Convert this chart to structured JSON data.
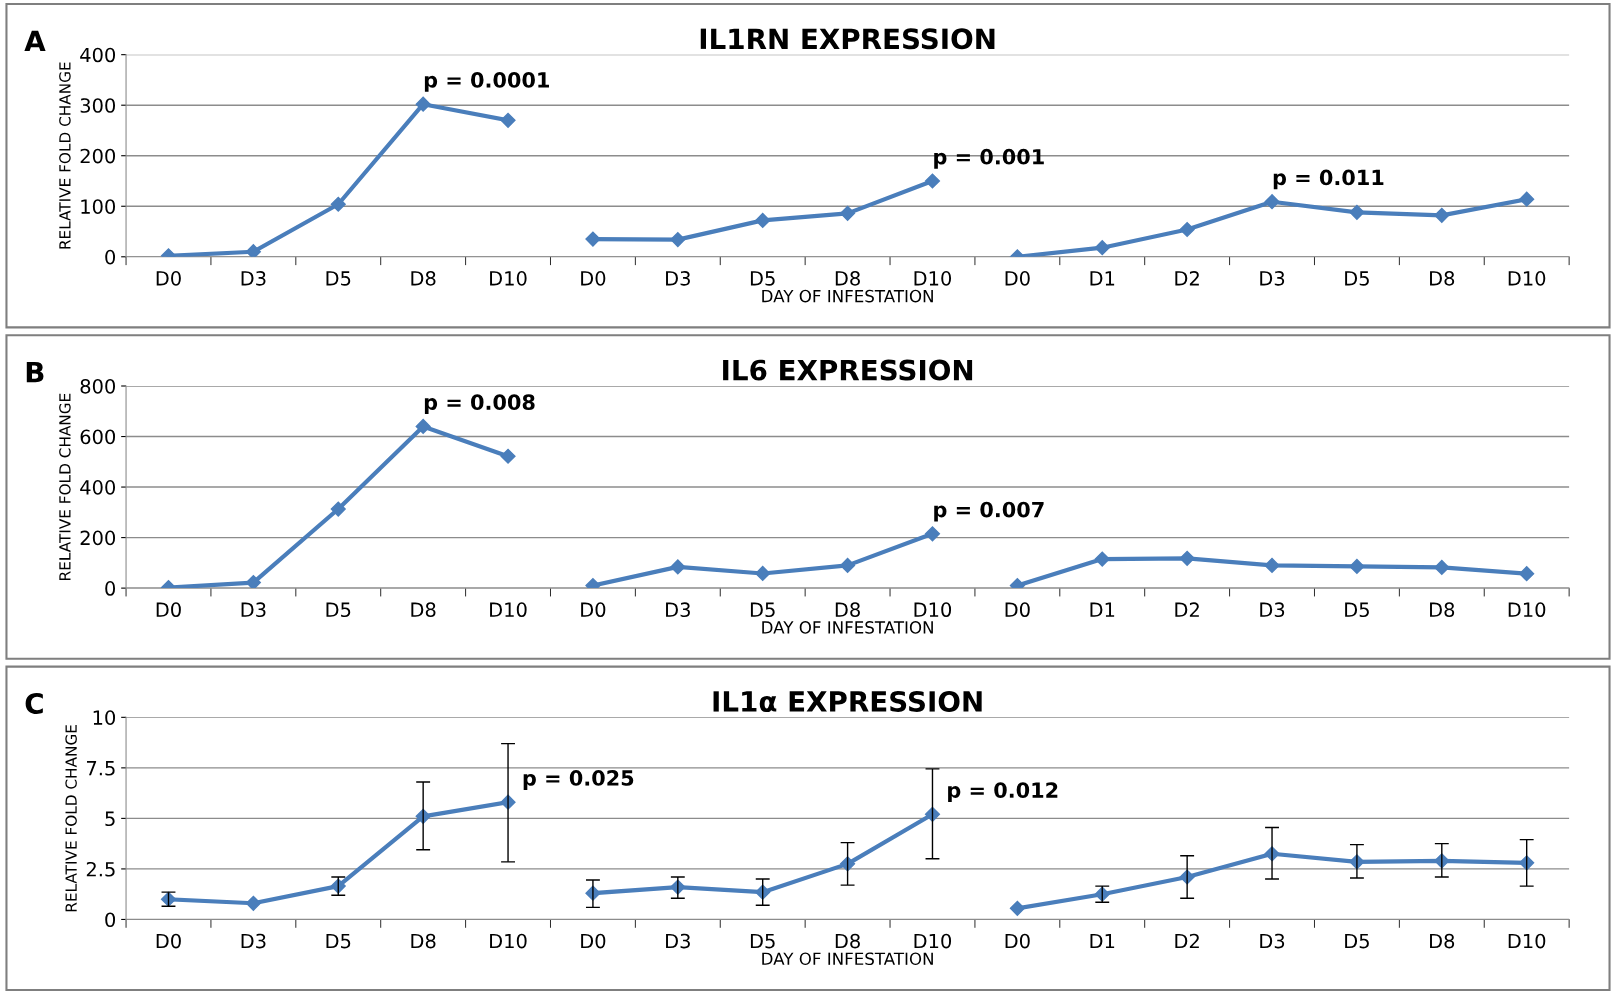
{
  "chart_data": [
    {
      "type": "line",
      "title": "IL1RN EXPRESSION",
      "xlabel": "DAY OF INFESTATION",
      "ylabel": "RELATIVE FOLD CHANGE",
      "categories": [
        "D0",
        "D3",
        "D5",
        "D8",
        "D10",
        "D0",
        "D3",
        "D5",
        "D8",
        "D10",
        "D0",
        "D1",
        "D2",
        "D3",
        "D5",
        "D8",
        "D10"
      ],
      "series": [
        {
          "color": "#4a7ebb",
          "values": [
            2,
            10,
            104,
            302,
            270,
            null,
            null,
            null,
            null,
            null,
            null,
            null,
            null,
            null,
            null,
            null,
            null
          ]
        },
        {
          "color": "#4a7ebb",
          "values": [
            null,
            null,
            null,
            null,
            null,
            35,
            34,
            72,
            86,
            150,
            null,
            null,
            null,
            null,
            null,
            null,
            null
          ]
        },
        {
          "color": "#4a7ebb",
          "values": [
            null,
            null,
            null,
            null,
            null,
            null,
            null,
            null,
            null,
            null,
            0,
            18,
            54,
            109,
            88,
            82,
            114
          ]
        }
      ],
      "ylim": [
        0,
        400
      ],
      "yticks": [
        0,
        100,
        200,
        300,
        400
      ],
      "grid": "y",
      "marker": "diamond",
      "line_style": "solid",
      "annotations": [
        "A",
        "p = 0.0001",
        "p = 0.001",
        "p = 0.011"
      ]
    },
    {
      "type": "line",
      "title": "IL6 EXPRESSION",
      "xlabel": "DAY OF INFESTATION",
      "ylabel": "RELATIVE FOLD CHANGE",
      "categories": [
        "D0",
        "D3",
        "D5",
        "D8",
        "D10",
        "D0",
        "D3",
        "D5",
        "D8",
        "D10",
        "D0",
        "D1",
        "D2",
        "D3",
        "D5",
        "D8",
        "D10"
      ],
      "series": [
        {
          "color": "#4a7ebb",
          "values": [
            2,
            22,
            313,
            640,
            522,
            null,
            null,
            null,
            null,
            null,
            null,
            null,
            null,
            null,
            null,
            null,
            null
          ]
        },
        {
          "color": "#4a7ebb",
          "values": [
            null,
            null,
            null,
            null,
            null,
            10,
            84,
            58,
            90,
            215,
            null,
            null,
            null,
            null,
            null,
            null,
            null
          ]
        },
        {
          "color": "#4a7ebb",
          "values": [
            null,
            null,
            null,
            null,
            null,
            null,
            null,
            null,
            null,
            null,
            10,
            115,
            118,
            90,
            86,
            82,
            57
          ]
        }
      ],
      "ylim": [
        0,
        800
      ],
      "yticks": [
        0,
        200,
        400,
        600,
        800
      ],
      "grid": "y",
      "marker": "diamond",
      "line_style": "solid",
      "annotations": [
        "B",
        "p = 0.008",
        "p = 0.007"
      ]
    },
    {
      "type": "line",
      "title": "IL1α EXPRESSION",
      "xlabel": "DAY OF INFESTATION",
      "ylabel": "RELATIVE FOLD CHANGE",
      "categories": [
        "D0",
        "D3",
        "D5",
        "D8",
        "D10",
        "D0",
        "D3",
        "D5",
        "D8",
        "D10",
        "D0",
        "D1",
        "D2",
        "D3",
        "D5",
        "D8",
        "D10"
      ],
      "series": [
        {
          "color": "#4a7ebb",
          "values": [
            1.0,
            0.8,
            1.65,
            5.1,
            5.8,
            null,
            null,
            null,
            null,
            null,
            null,
            null,
            null,
            null,
            null,
            null,
            null
          ],
          "errors": [
            [
              0.65,
              1.35
            ],
            null,
            [
              1.2,
              2.1
            ],
            [
              3.45,
              6.8
            ],
            [
              2.85,
              8.7
            ],
            null,
            null,
            null,
            null,
            null,
            null,
            null,
            null,
            null,
            null,
            null,
            null
          ]
        },
        {
          "color": "#4a7ebb",
          "values": [
            null,
            null,
            null,
            null,
            null,
            1.3,
            1.6,
            1.35,
            2.75,
            5.2,
            null,
            null,
            null,
            null,
            null,
            null,
            null
          ],
          "errors": [
            null,
            null,
            null,
            null,
            null,
            [
              0.6,
              1.95
            ],
            [
              1.05,
              2.1
            ],
            [
              0.7,
              2.0
            ],
            [
              1.7,
              3.8
            ],
            [
              3.0,
              7.45
            ],
            null,
            null,
            null,
            null,
            null,
            null,
            null
          ]
        },
        {
          "color": "#4a7ebb",
          "values": [
            null,
            null,
            null,
            null,
            null,
            null,
            null,
            null,
            null,
            null,
            0.55,
            1.25,
            2.1,
            3.25,
            2.85,
            2.9,
            2.8
          ],
          "errors": [
            null,
            null,
            null,
            null,
            null,
            null,
            null,
            null,
            null,
            null,
            null,
            [
              0.85,
              1.65
            ],
            [
              1.05,
              3.15
            ],
            [
              2.0,
              4.55
            ],
            [
              2.05,
              3.7
            ],
            [
              2.1,
              3.75
            ],
            [
              1.65,
              3.95
            ]
          ]
        }
      ],
      "ylim": [
        0,
        10
      ],
      "yticks": [
        0,
        2.5,
        5,
        7.5,
        10
      ],
      "grid": "y",
      "marker": "diamond",
      "line_style": "solid",
      "annotations": [
        "C",
        "p = 0.025",
        "p = 0.012"
      ]
    }
  ]
}
